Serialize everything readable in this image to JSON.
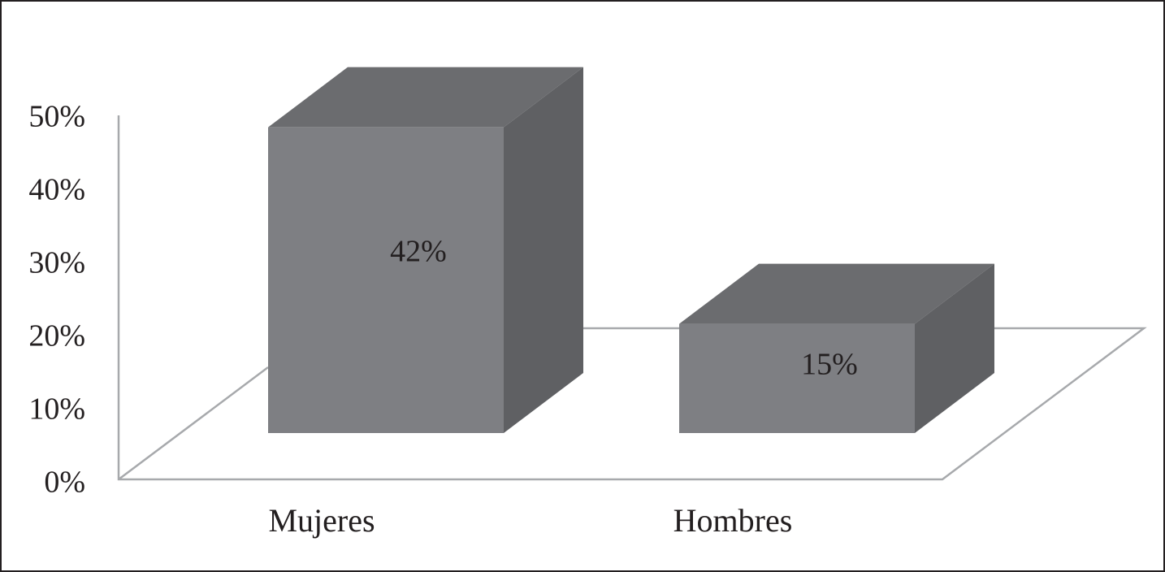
{
  "chart_data": {
    "type": "bar3d",
    "categories": [
      "Mujeres",
      "Hombres"
    ],
    "values": [
      42,
      15
    ],
    "value_labels": [
      "42%",
      "15%"
    ],
    "color": "#7e7f83",
    "ylim": [
      0,
      50
    ],
    "yticks": [
      {
        "value": 0,
        "label": "0%"
      },
      {
        "value": 10,
        "label": "10%"
      },
      {
        "value": 20,
        "label": "20%"
      },
      {
        "value": 30,
        "label": "30%"
      },
      {
        "value": 40,
        "label": "40%"
      },
      {
        "value": 50,
        "label": "50%"
      }
    ]
  }
}
